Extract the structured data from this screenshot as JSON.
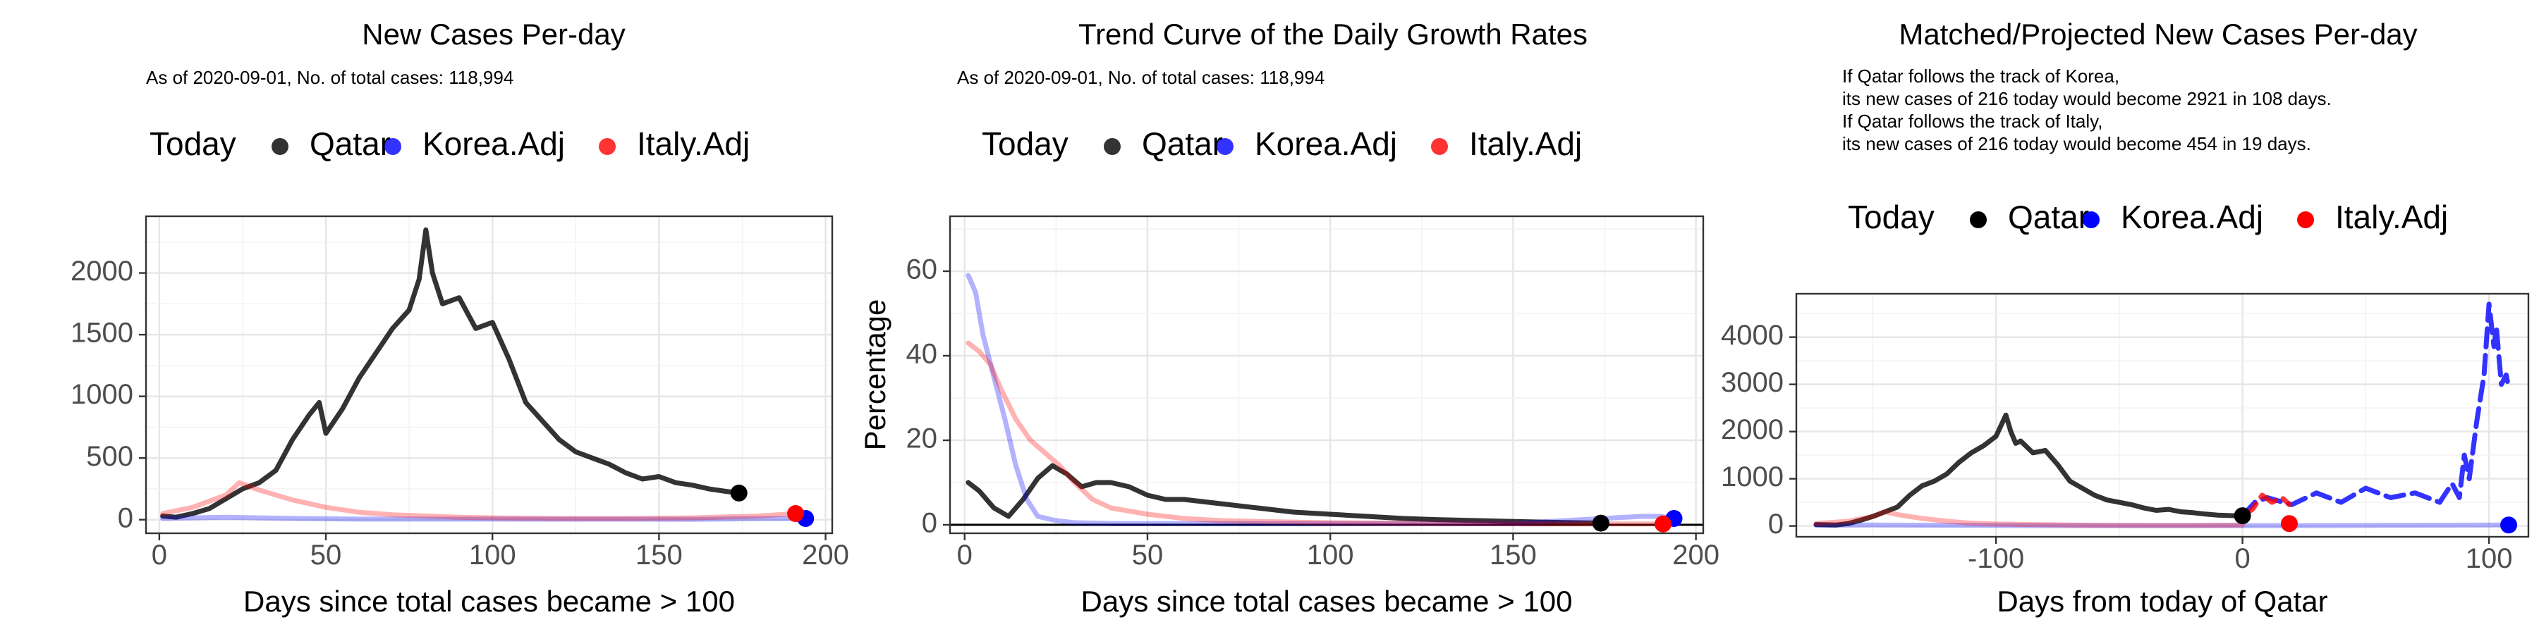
{
  "chart_data": [
    {
      "type": "line",
      "title": "New Cases Per-day",
      "note": [
        "As of 2020-09-01, No. of total cases: 118,994"
      ],
      "xlabel": "Days since total cases became > 100",
      "ylabel": "",
      "xlim": [
        -4,
        202
      ],
      "ylim": [
        -110,
        2460
      ],
      "xticks": [
        0,
        50,
        100,
        150,
        200
      ],
      "yticks": [
        0,
        500,
        1000,
        1500,
        2000
      ],
      "grid": true,
      "legend": {
        "title": "Today",
        "position": "top",
        "entries": [
          "Qatar",
          "Korea.Adj",
          "Italy.Adj"
        ]
      },
      "series": [
        {
          "name": "Qatar",
          "color": "#000000",
          "alpha": 0.8,
          "x": [
            1,
            5,
            10,
            15,
            20,
            25,
            30,
            35,
            40,
            45,
            48,
            50,
            55,
            60,
            65,
            70,
            75,
            78,
            80,
            82,
            85,
            90,
            95,
            100,
            105,
            110,
            115,
            120,
            125,
            130,
            135,
            140,
            145,
            150,
            155,
            160,
            165,
            170,
            174
          ],
          "y": [
            30,
            20,
            50,
            90,
            170,
            250,
            300,
            400,
            650,
            850,
            950,
            700,
            900,
            1150,
            1350,
            1550,
            1700,
            1950,
            2350,
            2000,
            1750,
            1800,
            1550,
            1600,
            1300,
            950,
            800,
            650,
            550,
            500,
            450,
            380,
            330,
            350,
            300,
            280,
            250,
            230,
            216
          ]
        },
        {
          "name": "Korea.Adj",
          "color": "#0000ff",
          "alpha": 0.3,
          "x": [
            1,
            10,
            20,
            40,
            60,
            80,
            100,
            120,
            140,
            160,
            180,
            194
          ],
          "y": [
            10,
            15,
            20,
            10,
            5,
            5,
            5,
            4,
            4,
            3,
            8,
            10
          ]
        },
        {
          "name": "Italy.Adj",
          "color": "#ff0000",
          "alpha": 0.3,
          "x": [
            1,
            10,
            20,
            24,
            30,
            40,
            50,
            60,
            70,
            80,
            90,
            100,
            120,
            140,
            160,
            180,
            191
          ],
          "y": [
            50,
            100,
            200,
            300,
            240,
            160,
            100,
            60,
            40,
            30,
            20,
            15,
            10,
            10,
            15,
            30,
            50
          ]
        }
      ],
      "today_points": [
        {
          "name": "Qatar",
          "x": 174,
          "y": 216,
          "color": "#000000"
        },
        {
          "name": "Korea.Adj",
          "x": 194,
          "y": 10,
          "color": "#0000ff"
        },
        {
          "name": "Italy.Adj",
          "x": 191,
          "y": 50,
          "color": "#ff0000"
        }
      ]
    },
    {
      "type": "line",
      "title": "Trend Curve of the Daily Growth Rates",
      "note": [
        "As of 2020-09-01, No. of total cases: 118,994"
      ],
      "xlabel": "Days since total cases became > 100",
      "ylabel": "Percentage",
      "xlim": [
        -4,
        202
      ],
      "ylim": [
        -2,
        73
      ],
      "xticks": [
        0,
        50,
        100,
        150,
        200
      ],
      "yticks": [
        0,
        20,
        40,
        60
      ],
      "hline": 0,
      "grid": true,
      "legend": {
        "title": "Today",
        "position": "top",
        "entries": [
          "Qatar",
          "Korea.Adj",
          "Italy.Adj"
        ]
      },
      "series": [
        {
          "name": "Qatar",
          "color": "#000000",
          "alpha": 0.8,
          "x": [
            1,
            4,
            8,
            12,
            16,
            20,
            24,
            28,
            32,
            36,
            40,
            45,
            50,
            55,
            60,
            70,
            80,
            90,
            100,
            110,
            120,
            130,
            140,
            150,
            160,
            174
          ],
          "y": [
            10,
            8,
            4,
            2,
            6,
            11,
            14,
            12,
            9,
            10,
            10,
            9,
            7,
            6,
            6,
            5,
            4,
            3,
            2.5,
            2,
            1.5,
            1.2,
            1,
            0.8,
            0.6,
            0.4
          ]
        },
        {
          "name": "Korea.Adj",
          "color": "#0000ff",
          "alpha": 0.3,
          "x": [
            1,
            3,
            5,
            8,
            11,
            14,
            17,
            20,
            25,
            30,
            40,
            60,
            80,
            100,
            150,
            185,
            190,
            194
          ],
          "y": [
            59,
            55,
            45,
            35,
            25,
            14,
            6,
            2,
            1,
            0.5,
            0.3,
            0.3,
            0.3,
            0.3,
            0.3,
            2,
            2,
            1.5
          ]
        },
        {
          "name": "Italy.Adj",
          "color": "#ff0000",
          "alpha": 0.3,
          "x": [
            1,
            4,
            7,
            10,
            14,
            18,
            22,
            26,
            30,
            35,
            40,
            50,
            60,
            70,
            80,
            100,
            130,
            160,
            191
          ],
          "y": [
            43,
            41,
            38,
            32,
            25,
            20,
            17,
            14,
            10,
            6,
            4,
            2.5,
            1.5,
            1,
            0.8,
            0.5,
            0.3,
            0.2,
            0.2
          ]
        }
      ],
      "today_points": [
        {
          "name": "Qatar",
          "x": 174,
          "y": 0.4,
          "color": "#000000"
        },
        {
          "name": "Korea.Adj",
          "x": 194,
          "y": 1.5,
          "color": "#0000ff"
        },
        {
          "name": "Italy.Adj",
          "x": 191,
          "y": 0.2,
          "color": "#ff0000"
        }
      ]
    },
    {
      "type": "line",
      "title": "Matched/Projected New Cases Per-day",
      "note": [
        "If Qatar follows the track of Korea,",
        "its new cases of 216 today would become 2921 in 108 days.",
        "If Qatar follows the track of Italy,",
        "its new cases of 216 today would become 454 in 19 days."
      ],
      "xlabel": "Days from today of Qatar",
      "ylabel": "",
      "xlim": [
        -181,
        116
      ],
      "ylim": [
        -230,
        4920
      ],
      "xticks": [
        -100,
        0,
        100
      ],
      "yticks": [
        0,
        1000,
        2000,
        3000,
        4000
      ],
      "grid": true,
      "legend": {
        "title": "Today",
        "position": "top",
        "entries": [
          "Qatar",
          "Korea.Adj",
          "Italy.Adj"
        ]
      },
      "series": [
        {
          "name": "Qatar",
          "color": "#000000",
          "alpha": 0.8,
          "x": [
            -173,
            -165,
            -160,
            -155,
            -150,
            -145,
            -140,
            -135,
            -130,
            -125,
            -120,
            -115,
            -110,
            -105,
            -100,
            -96,
            -94,
            -92,
            -90,
            -85,
            -80,
            -75,
            -70,
            -65,
            -60,
            -55,
            -50,
            -45,
            -40,
            -35,
            -30,
            -25,
            -20,
            -15,
            -10,
            -5,
            0
          ],
          "y": [
            30,
            20,
            50,
            120,
            200,
            300,
            400,
            650,
            850,
            950,
            1100,
            1350,
            1550,
            1700,
            1900,
            2350,
            2000,
            1750,
            1800,
            1550,
            1600,
            1300,
            950,
            800,
            650,
            550,
            500,
            450,
            380,
            330,
            350,
            300,
            280,
            250,
            230,
            220,
            216
          ]
        },
        {
          "name": "Korea.Adj",
          "color": "#0000ff",
          "alpha": 0.3,
          "x": [
            -173,
            -150,
            -100,
            -50,
            0,
            108
          ],
          "y": [
            15,
            20,
            10,
            5,
            5,
            20
          ]
        },
        {
          "name": "Korea.Adj",
          "color": "#0000ff",
          "alpha": 0.8,
          "dashed": true,
          "x": [
            0,
            5,
            10,
            20,
            30,
            40,
            50,
            60,
            70,
            80,
            85,
            88,
            90,
            92,
            95,
            98,
            100,
            102,
            103,
            105,
            107,
            108
          ],
          "y": [
            216,
            500,
            600,
            450,
            700,
            500,
            800,
            600,
            700,
            500,
            900,
            600,
            1500,
            1000,
            2200,
            3200,
            4700,
            3800,
            4200,
            3000,
            3200,
            2921
          ]
        },
        {
          "name": "Italy.Adj",
          "color": "#ff0000",
          "alpha": 0.3,
          "x": [
            -173,
            -160,
            -150,
            -145,
            -140,
            -130,
            -120,
            -110,
            -100,
            -80,
            -60,
            -40,
            -20,
            0
          ],
          "y": [
            50,
            100,
            200,
            300,
            240,
            160,
            100,
            60,
            40,
            25,
            15,
            10,
            10,
            20
          ]
        },
        {
          "name": "Italy.Adj",
          "color": "#ff0000",
          "alpha": 0.8,
          "dashed": true,
          "x": [
            0,
            4,
            8,
            12,
            16,
            19
          ],
          "y": [
            216,
            350,
            650,
            500,
            600,
            454
          ]
        }
      ],
      "today_points": [
        {
          "name": "Qatar",
          "x": 0,
          "y": 216,
          "color": "#000000"
        },
        {
          "name": "Korea.Adj",
          "x": 108,
          "y": 20,
          "color": "#0000ff"
        },
        {
          "name": "Italy.Adj",
          "x": 19,
          "y": 50,
          "color": "#ff0000"
        }
      ]
    }
  ]
}
